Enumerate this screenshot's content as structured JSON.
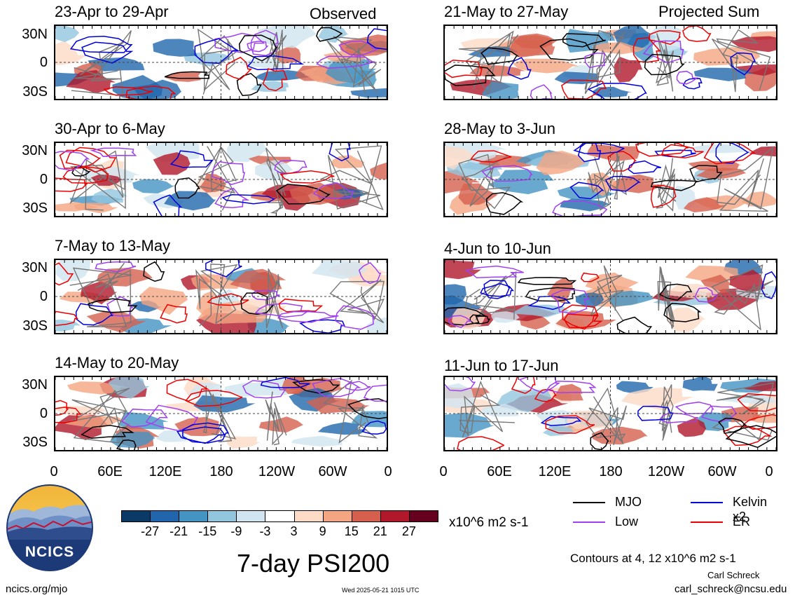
{
  "figure": {
    "title": "7-day PSI200",
    "observed_label": "Observed",
    "projected_label": "Projected Sum",
    "units": "x10^6 m2 s-1",
    "contours_note": "Contours at 4, 12 x10^6 m2 s-1",
    "author": "Carl Schreck",
    "email": "carl_schreck@ncsu.edu",
    "website": "ncics.org/mjo",
    "timestamp": "Wed 2025-05-21 1015 UTC",
    "logo_text": "NCICS"
  },
  "panels": {
    "left": [
      {
        "period": "23-Apr to 29-Apr"
      },
      {
        "period": "30-Apr to 6-May"
      },
      {
        "period": "7-May to 13-May"
      },
      {
        "period": "14-May to 20-May"
      }
    ],
    "right": [
      {
        "period": "21-May to 27-May"
      },
      {
        "period": "28-May to 3-Jun"
      },
      {
        "period": "4-Jun to 10-Jun"
      },
      {
        "period": "11-Jun to 17-Jun"
      }
    ]
  },
  "axes": {
    "lat_ticks": [
      "30N",
      "0",
      "30S"
    ],
    "lon_ticks": [
      "0",
      "60E",
      "120E",
      "180",
      "120W",
      "60W",
      "0"
    ]
  },
  "colorbar": {
    "labels": [
      "-27",
      "-21",
      "-15",
      "-9",
      "-3",
      "3",
      "9",
      "15",
      "21",
      "27"
    ],
    "colors": [
      "#0c3a66",
      "#2166ac",
      "#4393c3",
      "#92c5de",
      "#d1e5f0",
      "#ffffff",
      "#fddbc7",
      "#f4a582",
      "#d6604d",
      "#b2182b",
      "#67001f"
    ]
  },
  "legend": [
    {
      "label": "MJO",
      "color": "#000000"
    },
    {
      "label": "Kelvin x2",
      "color": "#0000dd"
    },
    {
      "label": "Low",
      "color": "#a040f0"
    },
    {
      "label": "ER",
      "color": "#ee0000"
    }
  ]
}
